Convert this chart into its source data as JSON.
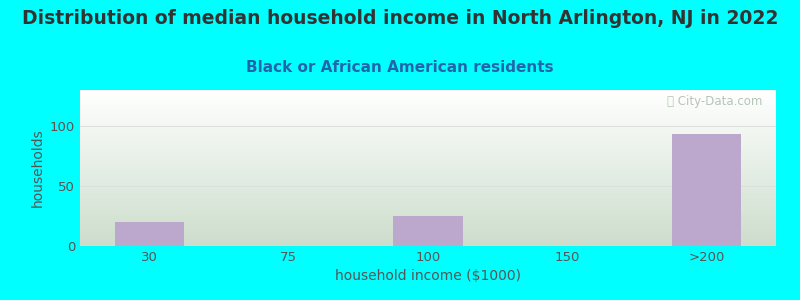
{
  "title": "Distribution of median household income in North Arlington, NJ in 2022",
  "subtitle": "Black or African American residents",
  "xlabel": "household income ($1000)",
  "ylabel": "households",
  "background_color": "#00FFFF",
  "bar_color": "#BBA8CC",
  "categories": [
    "30",
    "75",
    "100",
    "150",
    ">200"
  ],
  "values": [
    20,
    0,
    25,
    0,
    93
  ],
  "yticks": [
    0,
    50,
    100
  ],
  "ylim": [
    0,
    130
  ],
  "xlim": [
    -0.5,
    4.5
  ],
  "title_fontsize": 13.5,
  "subtitle_fontsize": 11,
  "axis_label_fontsize": 10,
  "tick_fontsize": 9.5,
  "title_color": "#333333",
  "subtitle_color": "#2266AA",
  "axis_label_color": "#555555",
  "tick_color": "#555555",
  "grid_color": "#DDDDDD",
  "watermark_text": "ⓘ City-Data.com",
  "watermark_color": "#AABBAA",
  "gradient_top": "#FFFFFF",
  "gradient_bottom": "#CCDDCC"
}
